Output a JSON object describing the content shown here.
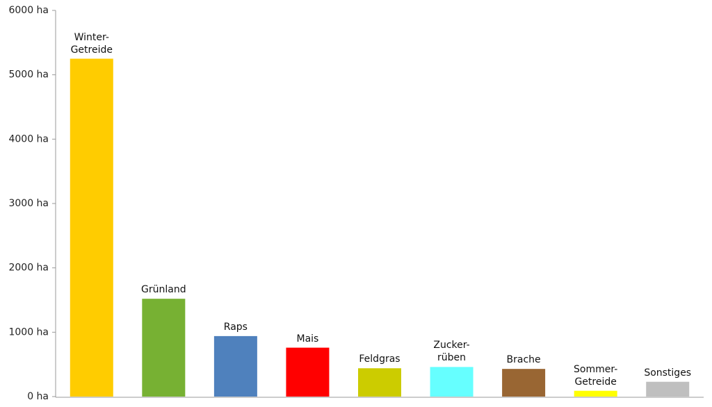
{
  "chart_data": {
    "type": "bar",
    "categories": [
      "Winter-\nGetreide",
      "Grünland",
      "Raps",
      "Mais",
      "Feldgras",
      "Zucker-\nrüben",
      "Brache",
      "Sommer-\nGetreide",
      "Sonstiges"
    ],
    "values": [
      5250,
      1520,
      940,
      760,
      440,
      460,
      430,
      90,
      230
    ],
    "colors": [
      "#ffcc00",
      "#77b133",
      "#4f81bd",
      "#ff0000",
      "#cccc00",
      "#66ffff",
      "#996633",
      "#ffff00",
      "#bfbfbf"
    ],
    "ylim": [
      0,
      6000
    ],
    "yticks": [
      {
        "value": 0,
        "label": "0 ha"
      },
      {
        "value": 1000,
        "label": "1000 ha"
      },
      {
        "value": 2000,
        "label": "2000 ha"
      },
      {
        "value": 3000,
        "label": "3000 ha"
      },
      {
        "value": 4000,
        "label": "4000 ha"
      },
      {
        "value": 5000,
        "label": "5000 ha"
      },
      {
        "value": 6000,
        "label": "6000 ha"
      }
    ],
    "grid": false
  }
}
